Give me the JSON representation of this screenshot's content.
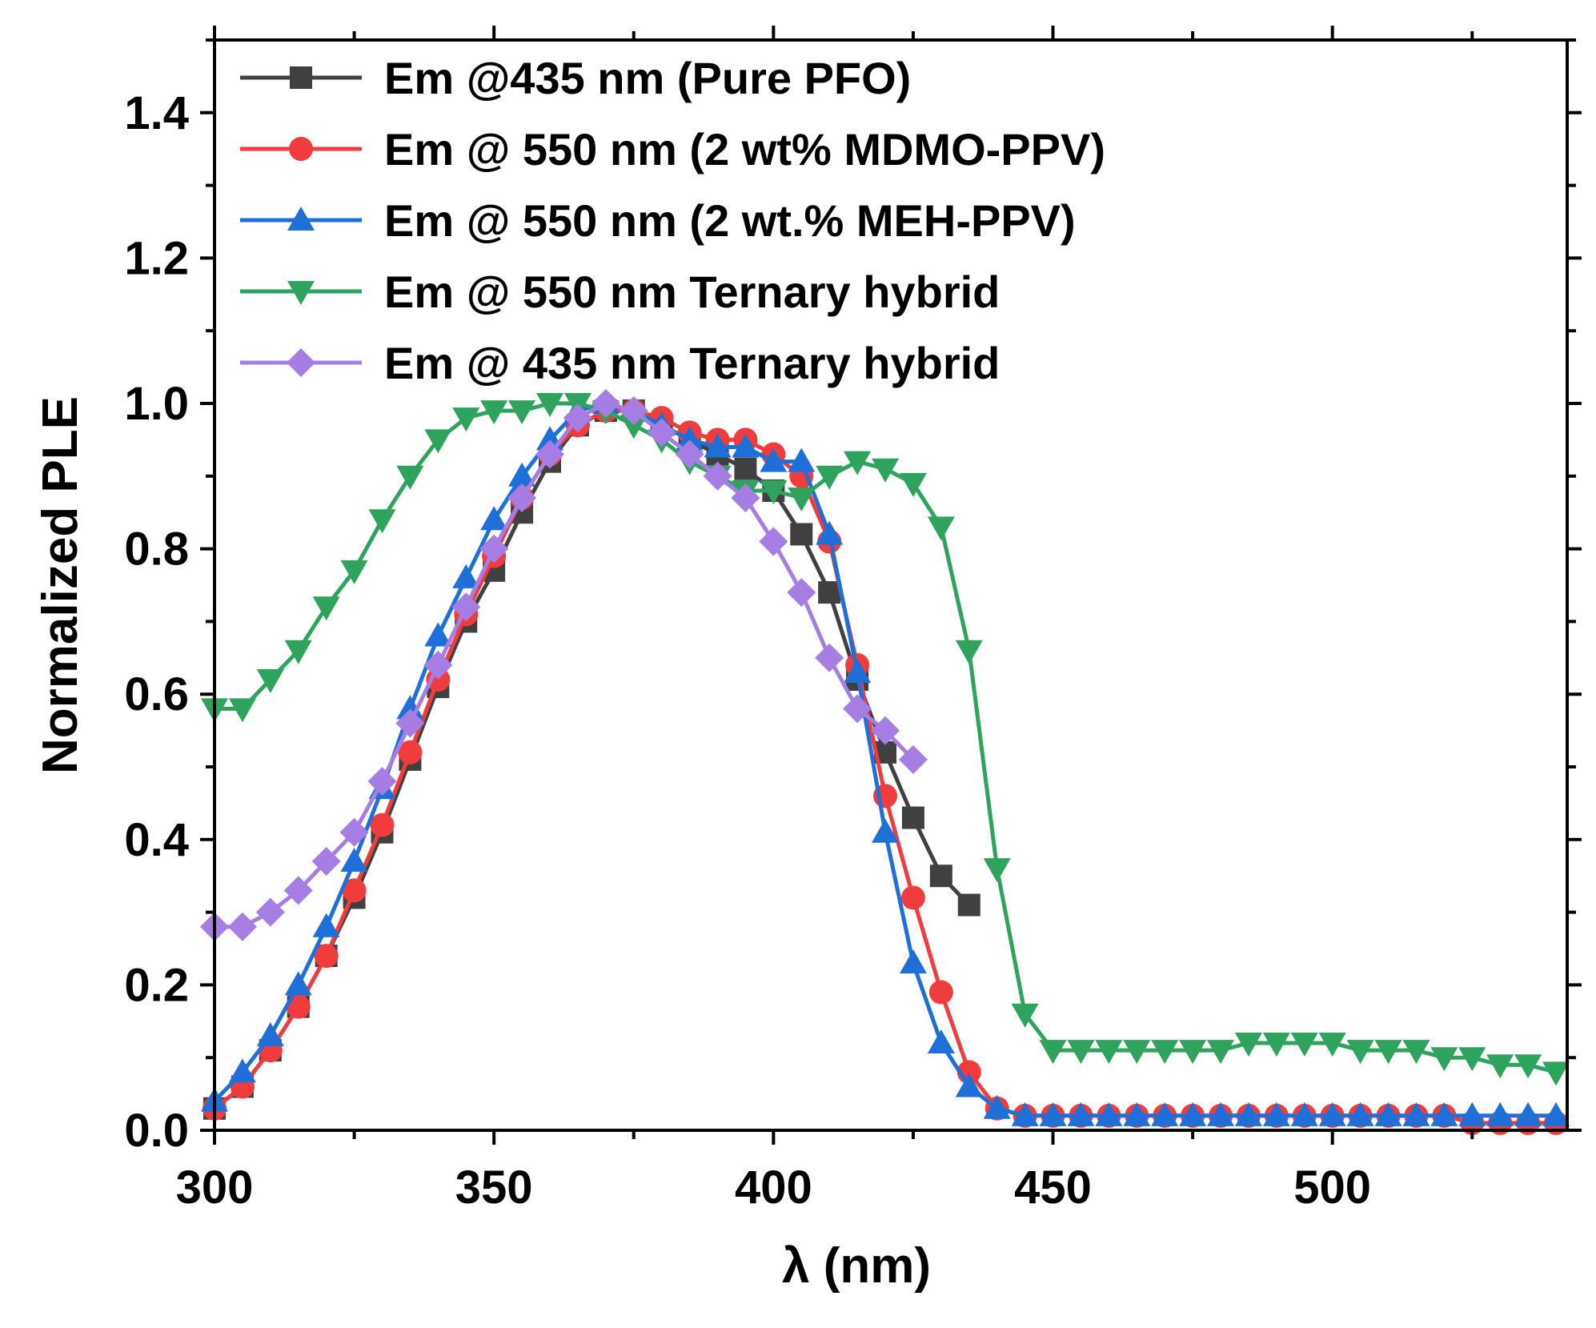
{
  "chart_data": {
    "type": "line",
    "title": "",
    "xlabel": "λ (nm)",
    "ylabel": "Normalized PLE",
    "xlim": [
      300,
      542
    ],
    "ylim": [
      0,
      1.5
    ],
    "xticks": [
      300,
      350,
      400,
      450,
      500
    ],
    "yticks": [
      0.0,
      0.2,
      0.4,
      0.6,
      0.8,
      1.0,
      1.2,
      1.4
    ],
    "xtick_labels": [
      "300",
      "350",
      "400",
      "450",
      "500"
    ],
    "ytick_labels": [
      "0.0",
      "0.2",
      "0.4",
      "0.6",
      "0.8",
      "1.0",
      "1.2",
      "1.4"
    ],
    "grid": false,
    "legend_position": "top-left",
    "series": [
      {
        "name": "Em @435 nm (Pure PFO)",
        "color": "#404040",
        "marker": "square",
        "x": [
          300,
          305,
          310,
          315,
          320,
          325,
          330,
          335,
          340,
          345,
          350,
          355,
          360,
          365,
          370,
          375,
          380,
          385,
          390,
          395,
          400,
          405,
          410,
          415,
          420,
          425,
          430,
          435
        ],
        "y": [
          0.03,
          0.06,
          0.11,
          0.17,
          0.24,
          0.32,
          0.41,
          0.51,
          0.61,
          0.7,
          0.77,
          0.85,
          0.92,
          0.97,
          0.99,
          0.99,
          0.97,
          0.95,
          0.93,
          0.91,
          0.88,
          0.82,
          0.74,
          0.62,
          0.52,
          0.43,
          0.35,
          0.31
        ]
      },
      {
        "name": "Em @ 550 nm (2 wt% MDMO-PPV)",
        "color": "#f03c3c",
        "marker": "circle",
        "x": [
          300,
          305,
          310,
          315,
          320,
          325,
          330,
          335,
          340,
          345,
          350,
          355,
          360,
          365,
          370,
          375,
          380,
          385,
          390,
          395,
          400,
          405,
          410,
          415,
          420,
          425,
          430,
          435,
          440,
          445,
          450,
          455,
          460,
          465,
          470,
          475,
          480,
          485,
          490,
          495,
          500,
          505,
          510,
          515,
          520,
          525,
          530,
          535,
          540
        ],
        "y": [
          0.03,
          0.06,
          0.11,
          0.17,
          0.24,
          0.33,
          0.42,
          0.52,
          0.62,
          0.71,
          0.79,
          0.87,
          0.93,
          0.97,
          0.99,
          0.99,
          0.98,
          0.96,
          0.95,
          0.95,
          0.93,
          0.9,
          0.81,
          0.64,
          0.46,
          0.32,
          0.19,
          0.08,
          0.03,
          0.02,
          0.02,
          0.02,
          0.02,
          0.02,
          0.02,
          0.02,
          0.02,
          0.02,
          0.02,
          0.02,
          0.02,
          0.02,
          0.02,
          0.02,
          0.02,
          0.01,
          0.01,
          0.01,
          0.01
        ]
      },
      {
        "name": "Em @ 550 nm (2 wt.% MEH-PPV)",
        "color": "#1f6fd9",
        "marker": "triangle-up",
        "x": [
          300,
          305,
          310,
          315,
          320,
          325,
          330,
          335,
          340,
          345,
          350,
          355,
          360,
          365,
          370,
          375,
          380,
          385,
          390,
          395,
          400,
          405,
          410,
          415,
          420,
          425,
          430,
          435,
          440,
          445,
          450,
          455,
          460,
          465,
          470,
          475,
          480,
          485,
          490,
          495,
          500,
          505,
          510,
          515,
          520,
          525,
          530,
          535,
          540
        ],
        "y": [
          0.04,
          0.08,
          0.13,
          0.2,
          0.28,
          0.37,
          0.47,
          0.58,
          0.68,
          0.76,
          0.84,
          0.9,
          0.95,
          0.99,
          1.0,
          0.99,
          0.97,
          0.95,
          0.94,
          0.94,
          0.92,
          0.92,
          0.82,
          0.63,
          0.41,
          0.23,
          0.12,
          0.06,
          0.03,
          0.02,
          0.02,
          0.02,
          0.02,
          0.02,
          0.02,
          0.02,
          0.02,
          0.02,
          0.02,
          0.02,
          0.02,
          0.02,
          0.02,
          0.02,
          0.02,
          0.02,
          0.02,
          0.02,
          0.02
        ]
      },
      {
        "name": "Em @ 550 nm Ternary hybrid",
        "color": "#2ea35e",
        "marker": "triangle-down",
        "x": [
          300,
          305,
          310,
          315,
          320,
          325,
          330,
          335,
          340,
          345,
          350,
          355,
          360,
          365,
          370,
          375,
          380,
          385,
          390,
          395,
          400,
          405,
          410,
          415,
          420,
          425,
          430,
          435,
          440,
          445,
          450,
          455,
          460,
          465,
          470,
          475,
          480,
          485,
          490,
          495,
          500,
          505,
          510,
          515,
          520,
          525,
          530,
          535,
          540
        ],
        "y": [
          0.58,
          0.58,
          0.62,
          0.66,
          0.72,
          0.77,
          0.84,
          0.9,
          0.95,
          0.98,
          0.99,
          0.99,
          1.0,
          1.0,
          0.99,
          0.97,
          0.95,
          0.92,
          0.9,
          0.88,
          0.88,
          0.87,
          0.9,
          0.92,
          0.91,
          0.89,
          0.83,
          0.66,
          0.36,
          0.16,
          0.11,
          0.11,
          0.11,
          0.11,
          0.11,
          0.11,
          0.11,
          0.12,
          0.12,
          0.12,
          0.12,
          0.11,
          0.11,
          0.11,
          0.1,
          0.1,
          0.09,
          0.09,
          0.08
        ]
      },
      {
        "name": "Em @ 435 nm Ternary hybrid",
        "color": "#a67de3",
        "marker": "diamond",
        "x": [
          300,
          305,
          310,
          315,
          320,
          325,
          330,
          335,
          340,
          345,
          350,
          355,
          360,
          365,
          370,
          375,
          380,
          385,
          390,
          395,
          400,
          405,
          410,
          415,
          420,
          425
        ],
        "y": [
          0.28,
          0.28,
          0.3,
          0.33,
          0.37,
          0.41,
          0.48,
          0.56,
          0.64,
          0.72,
          0.8,
          0.87,
          0.93,
          0.98,
          1.0,
          0.99,
          0.96,
          0.93,
          0.9,
          0.87,
          0.81,
          0.74,
          0.65,
          0.58,
          0.55,
          0.51
        ]
      }
    ]
  }
}
